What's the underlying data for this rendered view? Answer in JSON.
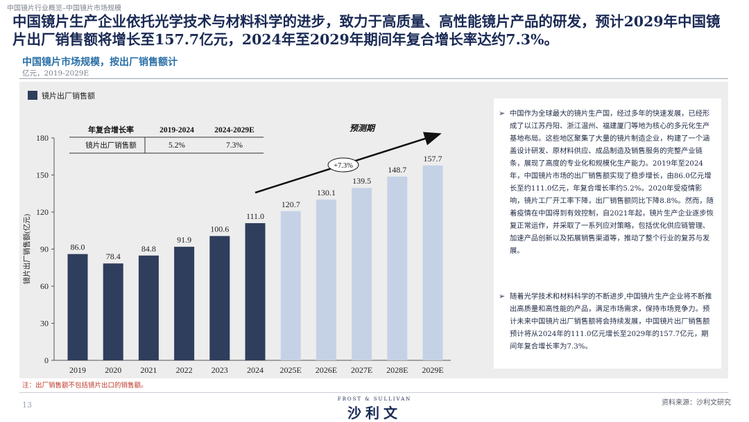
{
  "breadcrumb": "中国镜片行业概览–中国镜片市场规模",
  "headline": "中国镜片生产企业依托光学技术与材料科学的进步，致力于高质量、高性能镜片产品的研发，预计2029年中国镜片出厂销售额将增长至157.7亿元，2024年至2029年期间年复合增长率达约7.3%。",
  "chart_title": "中国镜片市场规模，按出厂销售额计",
  "chart_unit": "亿元，2019-2029E",
  "chart_data": {
    "type": "bar",
    "categories": [
      "2019",
      "2020",
      "2021",
      "2022",
      "2023",
      "2024",
      "2025E",
      "2026E",
      "2027E",
      "2028E",
      "2029E"
    ],
    "series": [
      {
        "name": "镜片出厂销售额",
        "values": [
          86.0,
          78.4,
          84.8,
          91.9,
          100.6,
          111.0,
          120.7,
          130.1,
          139.5,
          148.7,
          157.7
        ]
      }
    ],
    "value_labels": [
      "86.0",
      "78.4",
      "84.8",
      "91.9",
      "100.6",
      "111.0",
      "120.7",
      "130.1",
      "139.5",
      "148.7",
      "157.7"
    ],
    "ylabel": "镜片出厂销售额(亿元)",
    "ylim": [
      0,
      180
    ],
    "yticks": [
      0,
      30,
      60,
      90,
      120,
      150,
      180
    ],
    "legend_position": "top-left",
    "forecast_label": "预测期",
    "growth_label": "+7.3%",
    "cagr_table": {
      "header": [
        "年复合增长率",
        "2019-2024",
        "2024-2029E"
      ],
      "row": [
        "镜片出厂销售额",
        "5.2%",
        "7.3%"
      ]
    },
    "colors": {
      "historical": "#2f3e5c",
      "forecast": "#c5d2e6",
      "arrow": "#111111"
    }
  },
  "bullets": [
    "中国作为全球最大的镜片生产国，经过多年的快速发展，已经形成了以江苏丹阳、浙江温州、福建厦门等地为核心的多元化生产基地布局。这些地区聚集了大量的镜片制造企业，构建了一个涵盖设计研发、原材料供应、成品制造及销售服务的完整产业链条，展现了高度的专业化和规模化生产能力。2019年至2024年，中国镜片市场的出厂销售额实现了稳步增长，由86.0亿元增长至约111.0亿元，年复合增长率约5.2%。2020年受疫情影响，镜片工厂开工率下降，出厂销售额同比下降8.8%。然而，随着疫情在中国得到有效控制，自2021年起，镜片生产企业逐步恢复正常运作，并采取了一系列应对策略，包括优化供应链管理、加速产品创新以及拓展销售渠道等，推动了整个行业的复苏与发展。",
    "随着光学技术和材料科学的不断进步,中国镜片生产企业将不断推出高质量和高性能的产品，满足市场需求，保持市场竞争力。预计未来中国镜片出厂销售额将会持续发展，中国镜片出厂销售额预计将从2024年的111.0亿元增长至2029年的157.7亿元，期间年复合增长率为7.3%。"
  ],
  "note": "注：出厂销售额不包括镜片出口的销售额。",
  "page_number": "13",
  "logo_top": "FROST & SULLIVAN",
  "logo_main": "沙利文",
  "source": "资料来源：沙利文研究"
}
